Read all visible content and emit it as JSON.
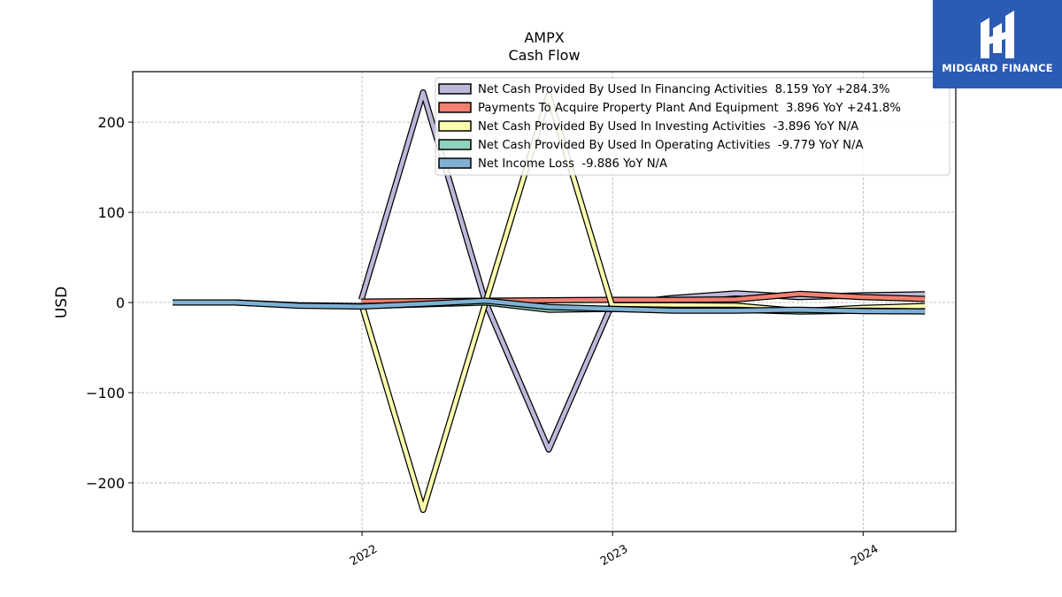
{
  "chart_data": {
    "type": "line",
    "title": "AMPX",
    "subtitle": "Cash Flow",
    "xlabel": "",
    "ylabel": "USD",
    "xlim": [
      "2021-02-01",
      "2024-05-15"
    ],
    "ylim": [
      -254,
      256
    ],
    "x_ticks": [
      "2022-01-01",
      "2023-01-01",
      "2024-01-01"
    ],
    "x_tick_labels": [
      "2022",
      "2023",
      "2024"
    ],
    "y_ticks": [
      -200,
      -100,
      0,
      100,
      200
    ],
    "y_tick_labels": [
      "−200",
      "−100",
      "0",
      "100",
      "200"
    ],
    "grid": true,
    "legend_position": "top-right",
    "series": [
      {
        "name": "Net Cash Provided By Used In Financing Activities",
        "legend_label": "Net Cash Provided By Used In Financing Activities  8.159 YoY +284.3%",
        "color": "#bcb8d9",
        "x": [
          "2021-12-31",
          "2022-03-31",
          "2022-06-30",
          "2022-09-30",
          "2022-12-31",
          "2023-03-31",
          "2023-06-30",
          "2023-09-30",
          "2023-12-31",
          "2024-03-31"
        ],
        "values": [
          3,
          233,
          0,
          -163,
          -2,
          5,
          10,
          6,
          8,
          9
        ]
      },
      {
        "name": "Payments To Acquire Property Plant And Equipment",
        "legend_label": "Payments To Acquire Property Plant And Equipment  3.896 YoY +241.8%",
        "color": "#f0806f",
        "x": [
          "2021-12-31",
          "2022-03-31",
          "2022-06-30",
          "2022-09-30",
          "2022-12-31",
          "2023-03-31",
          "2023-06-30",
          "2023-09-30",
          "2023-12-31",
          "2024-03-31"
        ],
        "values": [
          1,
          1.5,
          2,
          2.5,
          3,
          3,
          3.5,
          9.5,
          6,
          3.9
        ]
      },
      {
        "name": "Net Cash Provided By Used In Investing Activities",
        "legend_label": "Net Cash Provided By Used In Investing Activities  -3.896 YoY N/A",
        "color": "#fbfbad",
        "x": [
          "2021-12-31",
          "2022-03-31",
          "2022-06-30",
          "2022-09-30",
          "2022-12-31",
          "2023-03-31",
          "2023-06-30",
          "2023-09-30",
          "2023-12-31",
          "2024-03-31"
        ],
        "values": [
          -1,
          -230,
          0,
          230,
          -3,
          -3,
          -3.5,
          -9.5,
          -6,
          -3.9
        ]
      },
      {
        "name": "Net Cash Provided By Used In Operating Activities",
        "legend_label": "Net Cash Provided By Used In Operating Activities  -9.779 YoY N/A",
        "color": "#8dd3c0",
        "x": [
          "2021-03-31",
          "2021-06-30",
          "2021-09-30",
          "2021-12-31",
          "2022-03-31",
          "2022-06-30",
          "2022-09-30",
          "2022-12-31",
          "2023-03-31",
          "2023-06-30",
          "2023-09-30",
          "2023-12-31",
          "2024-03-31"
        ],
        "values": [
          0,
          0,
          -3,
          -4,
          -2,
          0,
          -8,
          -7,
          -8,
          -8,
          -10,
          -9,
          -9.8
        ]
      },
      {
        "name": "Net Income Loss",
        "legend_label": "Net Income Loss  -9.886 YoY N/A",
        "color": "#7eb0d4",
        "x": [
          "2021-03-31",
          "2021-06-30",
          "2021-09-30",
          "2021-12-31",
          "2022-03-31",
          "2022-06-30",
          "2022-09-30",
          "2022-12-31",
          "2023-03-31",
          "2023-06-30",
          "2023-09-30",
          "2023-12-31",
          "2024-03-31"
        ],
        "values": [
          0,
          0,
          -3.5,
          -4.5,
          -1.5,
          2,
          -5,
          -7,
          -9,
          -9,
          -8,
          -9.5,
          -9.9
        ]
      }
    ]
  },
  "logo": {
    "text": "MIDGARD FINANCE",
    "background": "#2b5bb5"
  }
}
